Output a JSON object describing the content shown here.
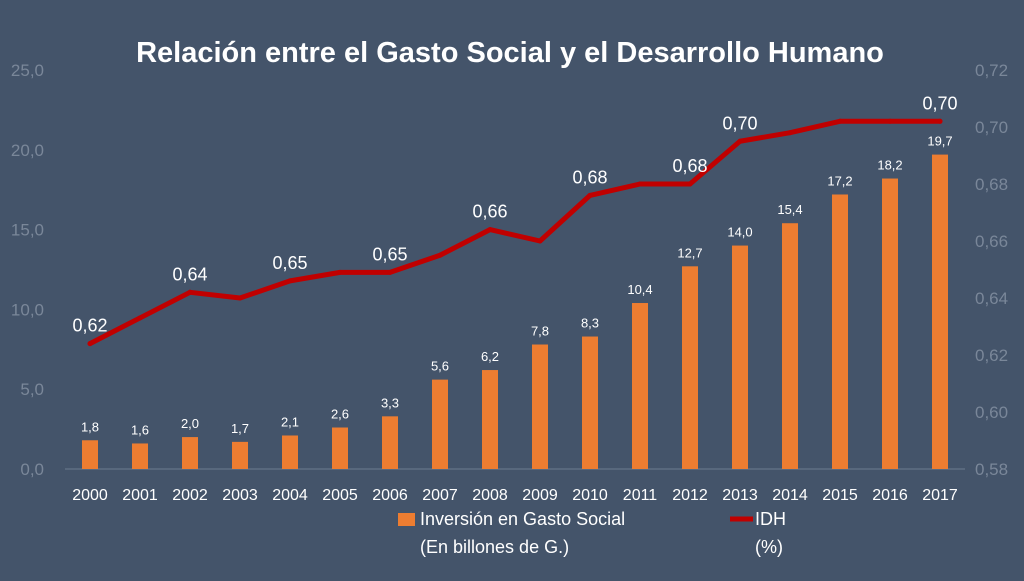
{
  "chart_data": {
    "type": "bar+line",
    "title": "Relación entre el Gasto Social y el Desarrollo Humano",
    "categories": [
      "2000",
      "2001",
      "2002",
      "2003",
      "2004",
      "2005",
      "2006",
      "2007",
      "2008",
      "2009",
      "2010",
      "2011",
      "2012",
      "2013",
      "2014",
      "2015",
      "2016",
      "2017"
    ],
    "left_axis": {
      "min": 0,
      "max": 25,
      "ticks": [
        "0,0",
        "5,0",
        "10,0",
        "15,0",
        "20,0",
        "25,0"
      ]
    },
    "right_axis": {
      "min": 0.58,
      "max": 0.72,
      "ticks": [
        "0,58",
        "0,60",
        "0,62",
        "0,64",
        "0,66",
        "0,68",
        "0,70",
        "0,72"
      ]
    },
    "series": [
      {
        "name": "Inversión en Gasto Social",
        "name_line2": "(En billones de G.)",
        "type": "bar",
        "axis": "left",
        "color": "#ed7d31",
        "values": [
          1.8,
          1.6,
          2.0,
          1.7,
          2.1,
          2.6,
          3.3,
          5.6,
          6.2,
          7.8,
          8.3,
          10.4,
          12.7,
          14.0,
          15.4,
          17.2,
          18.2,
          19.7
        ],
        "labels": [
          "1,8",
          "1,6",
          "2,0",
          "1,7",
          "2,1",
          "2,6",
          "3,3",
          "5,6",
          "6,2",
          "7,8",
          "8,3",
          "10,4",
          "12,7",
          "14,0",
          "15,4",
          "17,2",
          "18,2",
          "19,7"
        ]
      },
      {
        "name": "IDH",
        "name_line2": "(%)",
        "type": "line",
        "axis": "right",
        "color": "#c00000",
        "values": [
          0.624,
          0.633,
          0.642,
          0.64,
          0.646,
          0.649,
          0.649,
          0.655,
          0.664,
          0.66,
          0.676,
          0.68,
          0.68,
          0.695,
          0.698,
          0.702,
          0.702,
          0.702
        ],
        "labels": {
          "0": "0,62",
          "2": "0,64",
          "4": "0,65",
          "6": "0,65",
          "8": "0,66",
          "10": "0,68",
          "12": "0,68",
          "13": "0,70",
          "17": "0,70"
        }
      }
    ],
    "grid": false,
    "legend_position": "bottom"
  }
}
